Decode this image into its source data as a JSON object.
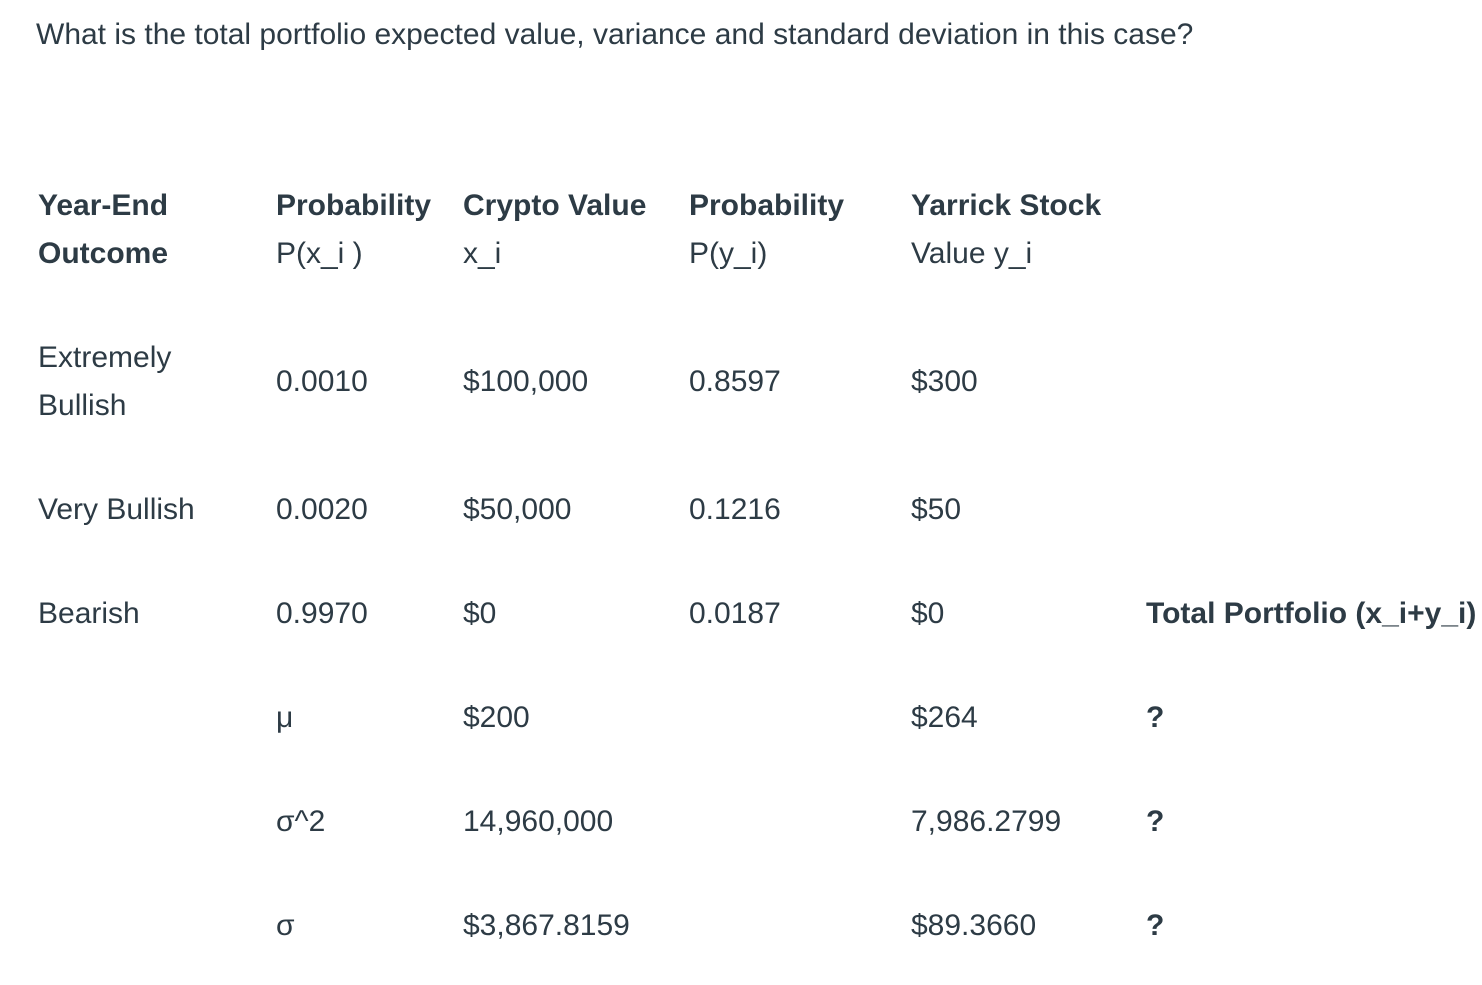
{
  "question": "What is the total portfolio expected value, variance and standard deviation in this case?",
  "headers": {
    "outcome": [
      "Year-End",
      "Outcome"
    ],
    "prob_x": [
      "Probability",
      "P(x_i )"
    ],
    "crypto": [
      "Crypto Value",
      "x_i"
    ],
    "prob_y": [
      "Probability",
      "P(y_i)"
    ],
    "yarrick": [
      "Yarrick Stock",
      "Value y_i"
    ]
  },
  "rows": [
    {
      "outcome": [
        "Extremely",
        "Bullish"
      ],
      "prob_x": "0.0010",
      "crypto": "$100,000",
      "prob_y": "0.8597",
      "yarrick": "$300"
    },
    {
      "outcome": [
        "Very Bullish"
      ],
      "prob_x": "0.0020",
      "crypto": "$50,000",
      "prob_y": "0.1216",
      "yarrick": "$50"
    },
    {
      "outcome": [
        "Bearish"
      ],
      "prob_x": "0.9970",
      "crypto": "$0",
      "prob_y": "0.0187",
      "yarrick": "$0",
      "total_header": "Total Portfolio (x_i+y_i)"
    }
  ],
  "stats": [
    {
      "label": "μ",
      "crypto": "$200",
      "yarrick": "$264",
      "total": "?"
    },
    {
      "label": "σ^2",
      "crypto": "14,960,000",
      "yarrick": "7,986.2799",
      "total": "?"
    },
    {
      "label": "σ",
      "crypto": "$3,867.8159",
      "yarrick": "$89.3660",
      "total": "?"
    }
  ]
}
